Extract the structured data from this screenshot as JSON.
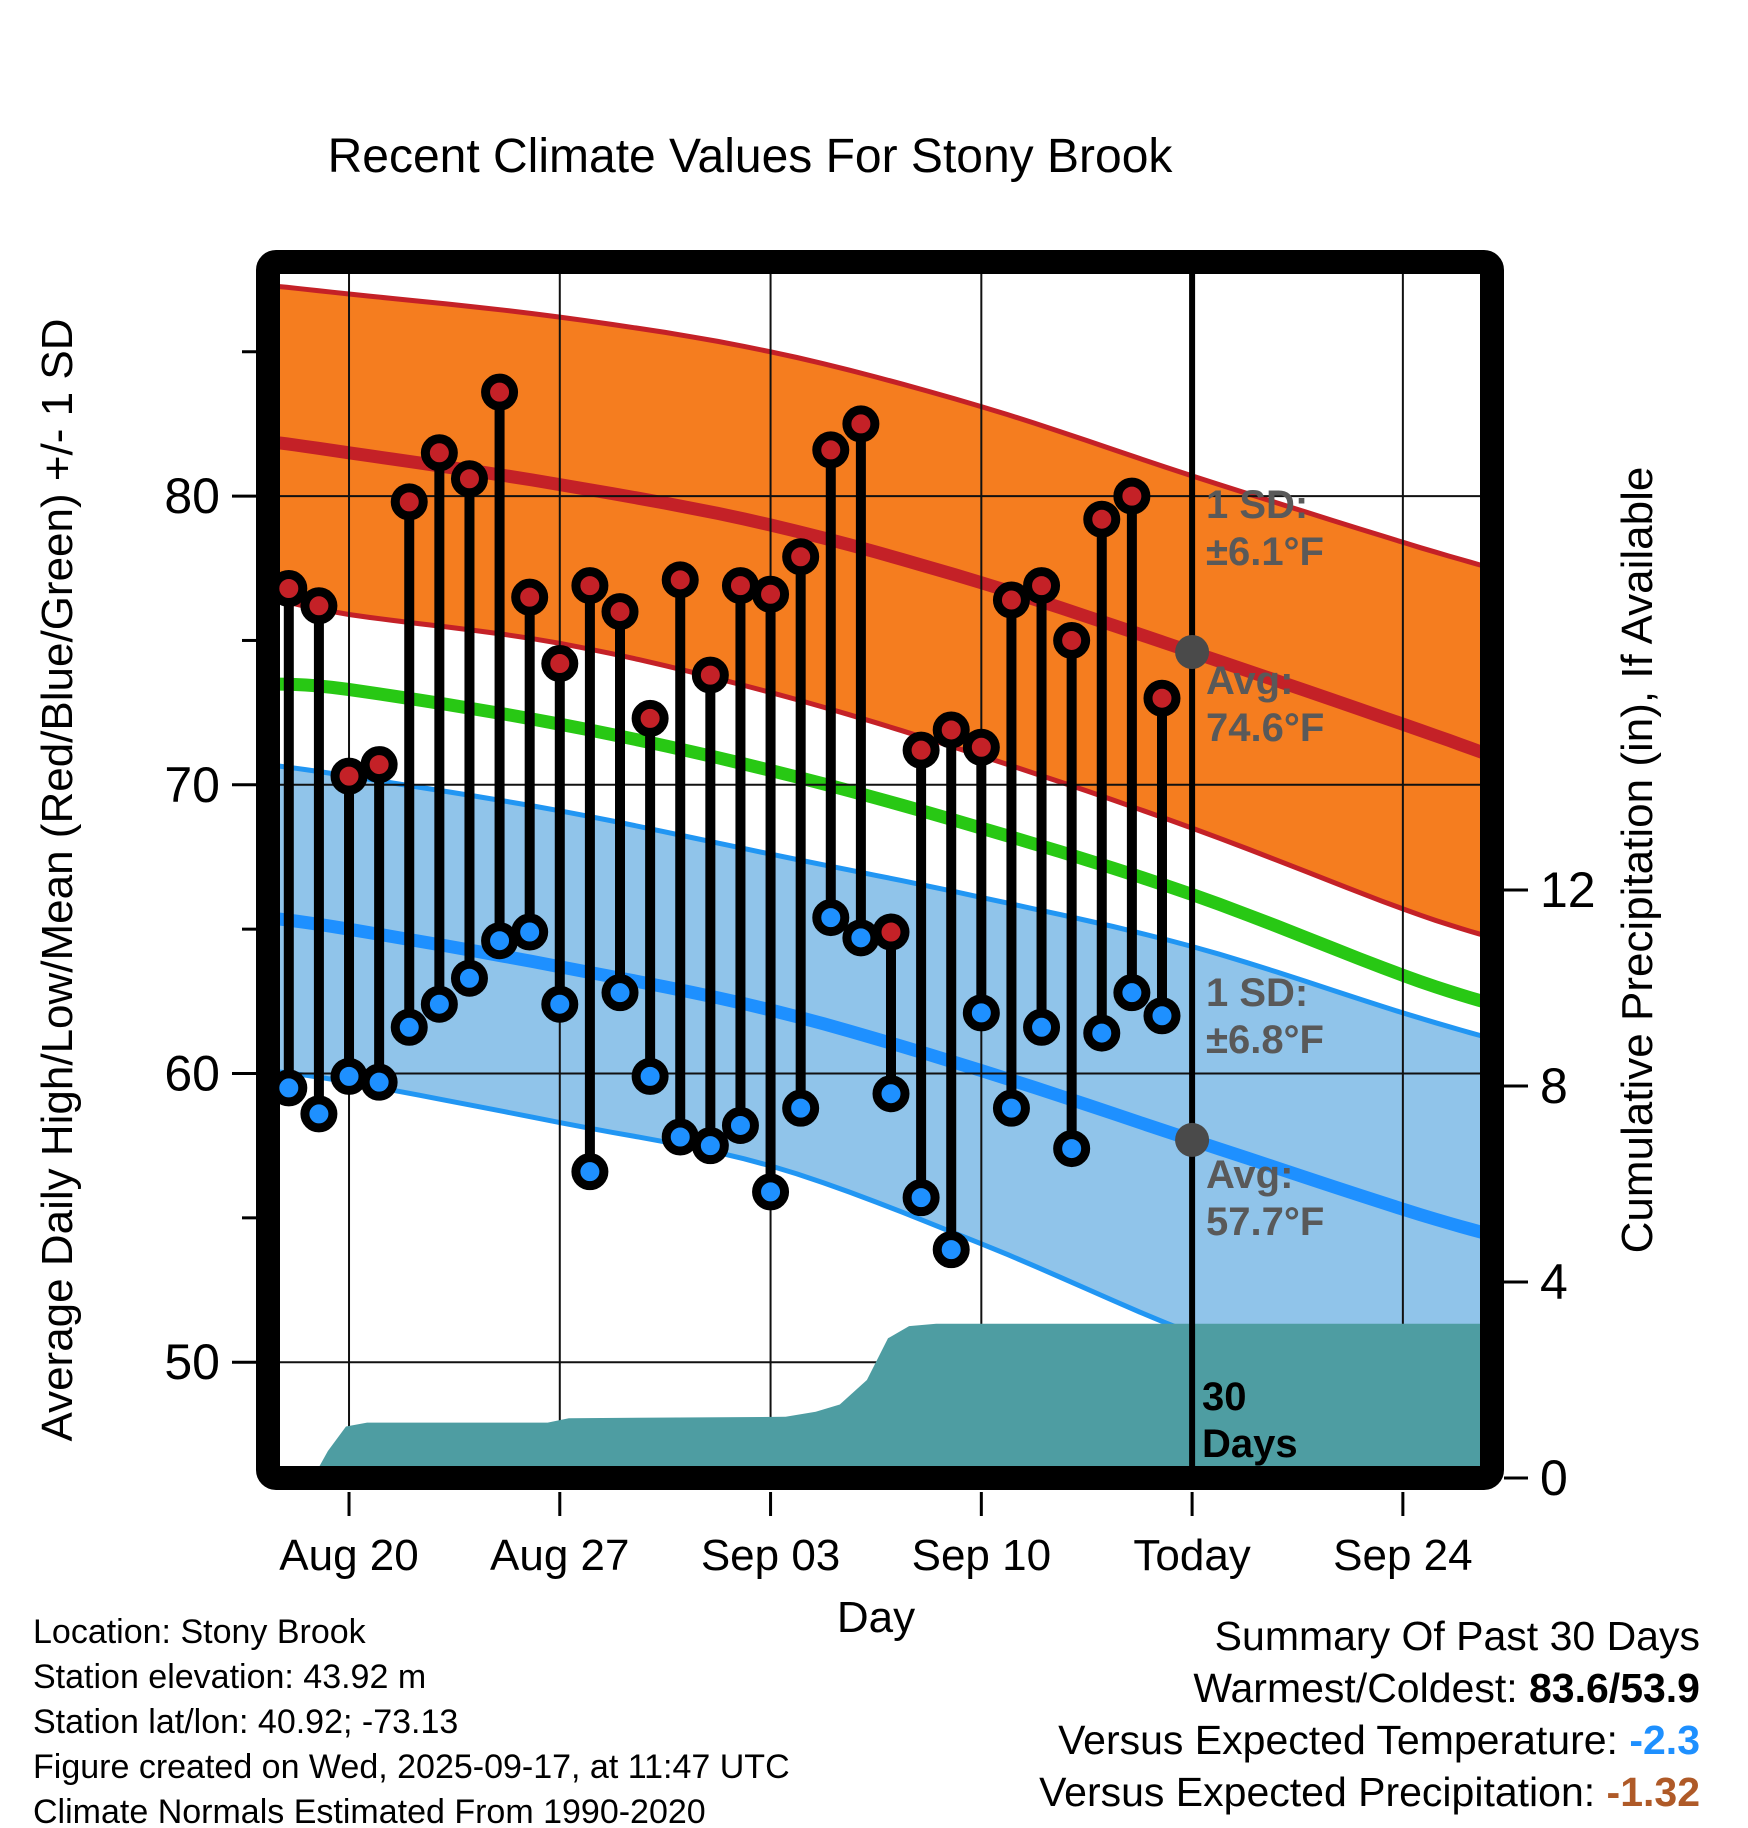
{
  "title": "Recent Climate Values For Stony Brook",
  "axes": {
    "left_label": "Average Daily High/Low/Mean (Red/Blue/Green) +/- 1 SD",
    "right_label": "Cumulative Precipitation (in), If Available",
    "x_label": "Day"
  },
  "footer": {
    "lines": [
      "Location: Stony Brook",
      "Station elevation: 43.92 m",
      "Station lat/lon: 40.92; -73.13",
      "Figure created on Wed, 2025-09-17, at 11:47 UTC",
      "Climate Normals Estimated From 1990-2020"
    ]
  },
  "summary": {
    "title": "Summary Of Past 30 Days",
    "rows": [
      {
        "label": "Warmest/Coldest:  ",
        "value": "83.6/53.9",
        "value_color": "#000000"
      },
      {
        "label": "Versus Expected Temperature:    ",
        "value": "-2.3",
        "value_color": "#1E90FF"
      },
      {
        "label": "Versus Expected Precipitation:  ",
        "value": "-1.32",
        "value_color": "#AF5A28"
      }
    ]
  },
  "chart_data": {
    "type": "line",
    "title": "Recent Climate Values For Stony Brook",
    "x_axis": {
      "label": "Day",
      "ticks": [
        {
          "day": 2,
          "label": "Aug 20"
        },
        {
          "day": 9,
          "label": "Aug 27"
        },
        {
          "day": 16,
          "label": "Sep 03"
        },
        {
          "day": 23,
          "label": "Sep 10"
        },
        {
          "day": 30,
          "label": "Today"
        },
        {
          "day": 37,
          "label": "Sep 24"
        }
      ]
    },
    "y_left": {
      "label": "Average Daily High/Low/Mean (Red/Blue/Green) +/- 1 SD",
      "ticks": [
        50,
        60,
        70,
        80
      ],
      "minor_ticks": [
        55,
        65,
        75,
        85
      ],
      "range_f": [
        46.0,
        88.1
      ]
    },
    "y_right": {
      "label": "Cumulative Precipitation (in), If Available",
      "ticks": [
        0,
        4,
        8,
        12
      ],
      "range_in": [
        0,
        24.8
      ]
    },
    "daily": {
      "dates": [
        "Aug 18",
        "Aug 19",
        "Aug 20",
        "Aug 21",
        "Aug 22",
        "Aug 23",
        "Aug 24",
        "Aug 25",
        "Aug 26",
        "Aug 27",
        "Aug 28",
        "Aug 29",
        "Aug 30",
        "Aug 31",
        "Sep 01",
        "Sep 02",
        "Sep 03",
        "Sep 04",
        "Sep 05",
        "Sep 06",
        "Sep 07",
        "Sep 08",
        "Sep 09",
        "Sep 10",
        "Sep 11",
        "Sep 12",
        "Sep 13",
        "Sep 14",
        "Sep 15",
        "Sep 16"
      ],
      "high_f": [
        76.8,
        76.2,
        70.3,
        70.7,
        79.8,
        81.5,
        80.6,
        83.6,
        76.5,
        74.2,
        76.9,
        76.0,
        72.3,
        77.1,
        73.8,
        76.9,
        76.6,
        77.9,
        81.6,
        82.5,
        64.9,
        71.2,
        71.9,
        71.3,
        76.4,
        76.9,
        75.0,
        79.2,
        80.0,
        73.0
      ],
      "low_f": [
        59.5,
        58.6,
        59.9,
        59.7,
        61.6,
        62.4,
        63.3,
        64.6,
        64.9,
        62.4,
        56.6,
        62.8,
        59.9,
        57.8,
        57.5,
        58.2,
        55.9,
        58.8,
        65.4,
        64.7,
        59.3,
        55.7,
        53.9,
        62.1,
        58.8,
        61.6,
        57.4,
        61.4,
        62.8,
        62.0
      ]
    },
    "normals": {
      "anchor_days": [
        -0.69,
        2,
        9,
        16,
        23,
        30,
        37,
        39.96
      ],
      "high_plus_sd": [
        87.3,
        87.0,
        86.2,
        85.0,
        83.1,
        80.7,
        78.4,
        77.5
      ],
      "high_avg": [
        81.9,
        81.5,
        80.4,
        79.0,
        77.0,
        74.6,
        72.1,
        71.0
      ],
      "high_minus_sd": [
        76.5,
        75.9,
        74.9,
        73.2,
        71.0,
        68.5,
        65.7,
        64.7
      ],
      "mean": [
        73.5,
        73.3,
        72.1,
        70.5,
        68.5,
        66.2,
        63.4,
        62.4
      ],
      "low_plus_sd": [
        70.7,
        70.3,
        69.1,
        67.6,
        66.1,
        64.4,
        62.1,
        61.2
      ],
      "low_avg": [
        65.4,
        65.0,
        63.7,
        62.2,
        60.1,
        57.7,
        55.3,
        54.4
      ],
      "low_minus_sd": [
        60.1,
        59.7,
        58.3,
        56.8,
        54.1,
        51.0,
        48.5,
        47.6
      ]
    },
    "precip_cumulative": {
      "points_day_in": [
        [
          0.8,
          0
        ],
        [
          1.3,
          0.55
        ],
        [
          1.9,
          1.05
        ],
        [
          2.6,
          1.13
        ],
        [
          8.6,
          1.13
        ],
        [
          9.3,
          1.22
        ],
        [
          16.5,
          1.25
        ],
        [
          17.5,
          1.35
        ],
        [
          18.3,
          1.5
        ],
        [
          19.2,
          2.0
        ],
        [
          19.9,
          2.85
        ],
        [
          20.6,
          3.1
        ],
        [
          21.5,
          3.15
        ],
        [
          39.96,
          3.15
        ]
      ]
    },
    "today": {
      "day": 30,
      "high_avg_f": 74.6,
      "low_avg_f": 57.7,
      "high_sd_f": 6.1,
      "low_sd_f": 6.8
    },
    "annotations": {
      "high_sd": {
        "line1": "1 SD:",
        "line2": "±6.1°F"
      },
      "high_avg": {
        "line1": "Avg:",
        "line2": "74.6°F"
      },
      "low_sd": {
        "line1": "1 SD:",
        "line2": "±6.8°F"
      },
      "low_avg": {
        "line1": "Avg:",
        "line2": "57.7°F"
      },
      "period": {
        "line1": "30",
        "line2": "Days"
      }
    },
    "legend_position": "in-plot annotations",
    "grid": true,
    "colors": {
      "high_band_fill": "#F57D1F",
      "high_line": "#C42127",
      "low_band_fill": "#90C4EA",
      "low_line": "#1E90FF",
      "low_edge": "#2196F3",
      "mean_line": "#28C814",
      "precip_fill": "#4E9DA2",
      "high_dot": "#C42127",
      "low_dot": "#1E90FF",
      "annotation_gray": "#595959",
      "marker_gray": "#4A4A4A"
    }
  }
}
